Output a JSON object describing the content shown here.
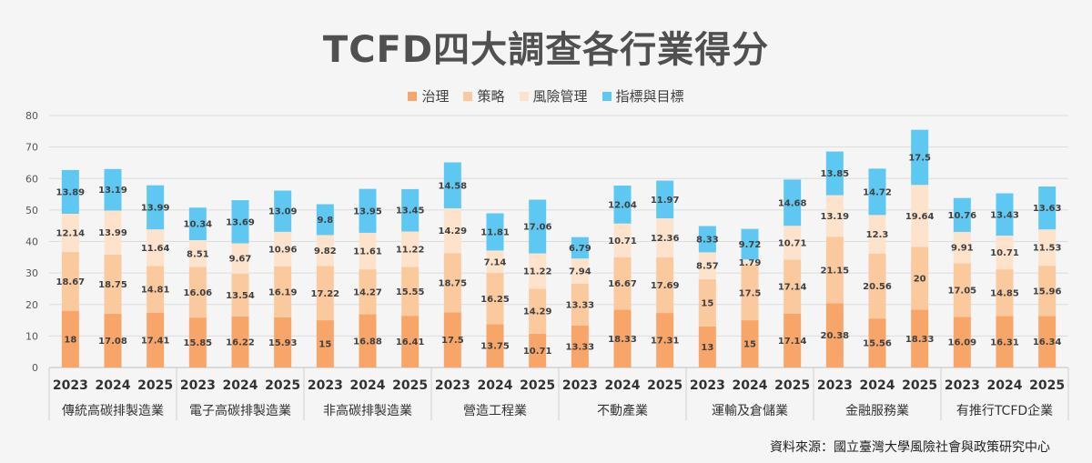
{
  "title": "TCFD四大調查各行業得分",
  "source": "資料來源：國立臺灣大學風險社會與政策研究中心",
  "chart_data": {
    "type": "bar",
    "stacked": true,
    "title": "TCFD四大調查各行業得分",
    "ylim": [
      0,
      80
    ],
    "yticks": [
      0,
      10,
      20,
      30,
      40,
      50,
      60,
      70,
      80
    ],
    "grid": true,
    "legend_position": "top-center",
    "groups": [
      "傳統高碳排製造業",
      "電子高碳排製造業",
      "非高碳排製造業",
      "營造工程業",
      "不動產業",
      "運輸及倉儲業",
      "金融服務業",
      "有推行TCFD企業"
    ],
    "years": [
      "2023",
      "2024",
      "2025"
    ],
    "series": [
      {
        "name": "治理",
        "color": "#f8a56a",
        "values": [
          18,
          17.08,
          17.41,
          15.85,
          16.22,
          15.93,
          15,
          16.88,
          16.41,
          17.5,
          13.75,
          10.71,
          13.33,
          18.33,
          17.31,
          13,
          15,
          17.14,
          20.38,
          15.56,
          18.33,
          16.09,
          16.31,
          16.34
        ]
      },
      {
        "name": "策略",
        "color": "#fbc99e",
        "values": [
          18.67,
          18.75,
          14.81,
          16.06,
          13.54,
          16.19,
          17.22,
          14.27,
          15.55,
          18.75,
          16.25,
          14.29,
          13.33,
          16.67,
          17.69,
          15,
          17.5,
          17.14,
          21.15,
          20.56,
          20,
          17.05,
          14.85,
          15.96
        ]
      },
      {
        "name": "風險管理",
        "color": "#fde2cc",
        "values": [
          12.14,
          13.99,
          11.64,
          8.51,
          9.67,
          10.96,
          9.82,
          11.61,
          11.22,
          14.29,
          7.14,
          11.22,
          7.94,
          10.71,
          12.36,
          8.57,
          1.79,
          10.71,
          13.19,
          12.3,
          19.64,
          9.91,
          10.71,
          11.53
        ]
      },
      {
        "name": "指標與目標",
        "color": "#5ec8f3",
        "values": [
          13.89,
          13.19,
          13.99,
          10.34,
          13.69,
          13.09,
          9.8,
          13.95,
          13.45,
          14.58,
          11.81,
          17.06,
          6.79,
          12.04,
          11.97,
          8.33,
          9.72,
          14.68,
          13.85,
          14.72,
          17.5,
          10.76,
          13.43,
          13.63
        ]
      }
    ]
  }
}
